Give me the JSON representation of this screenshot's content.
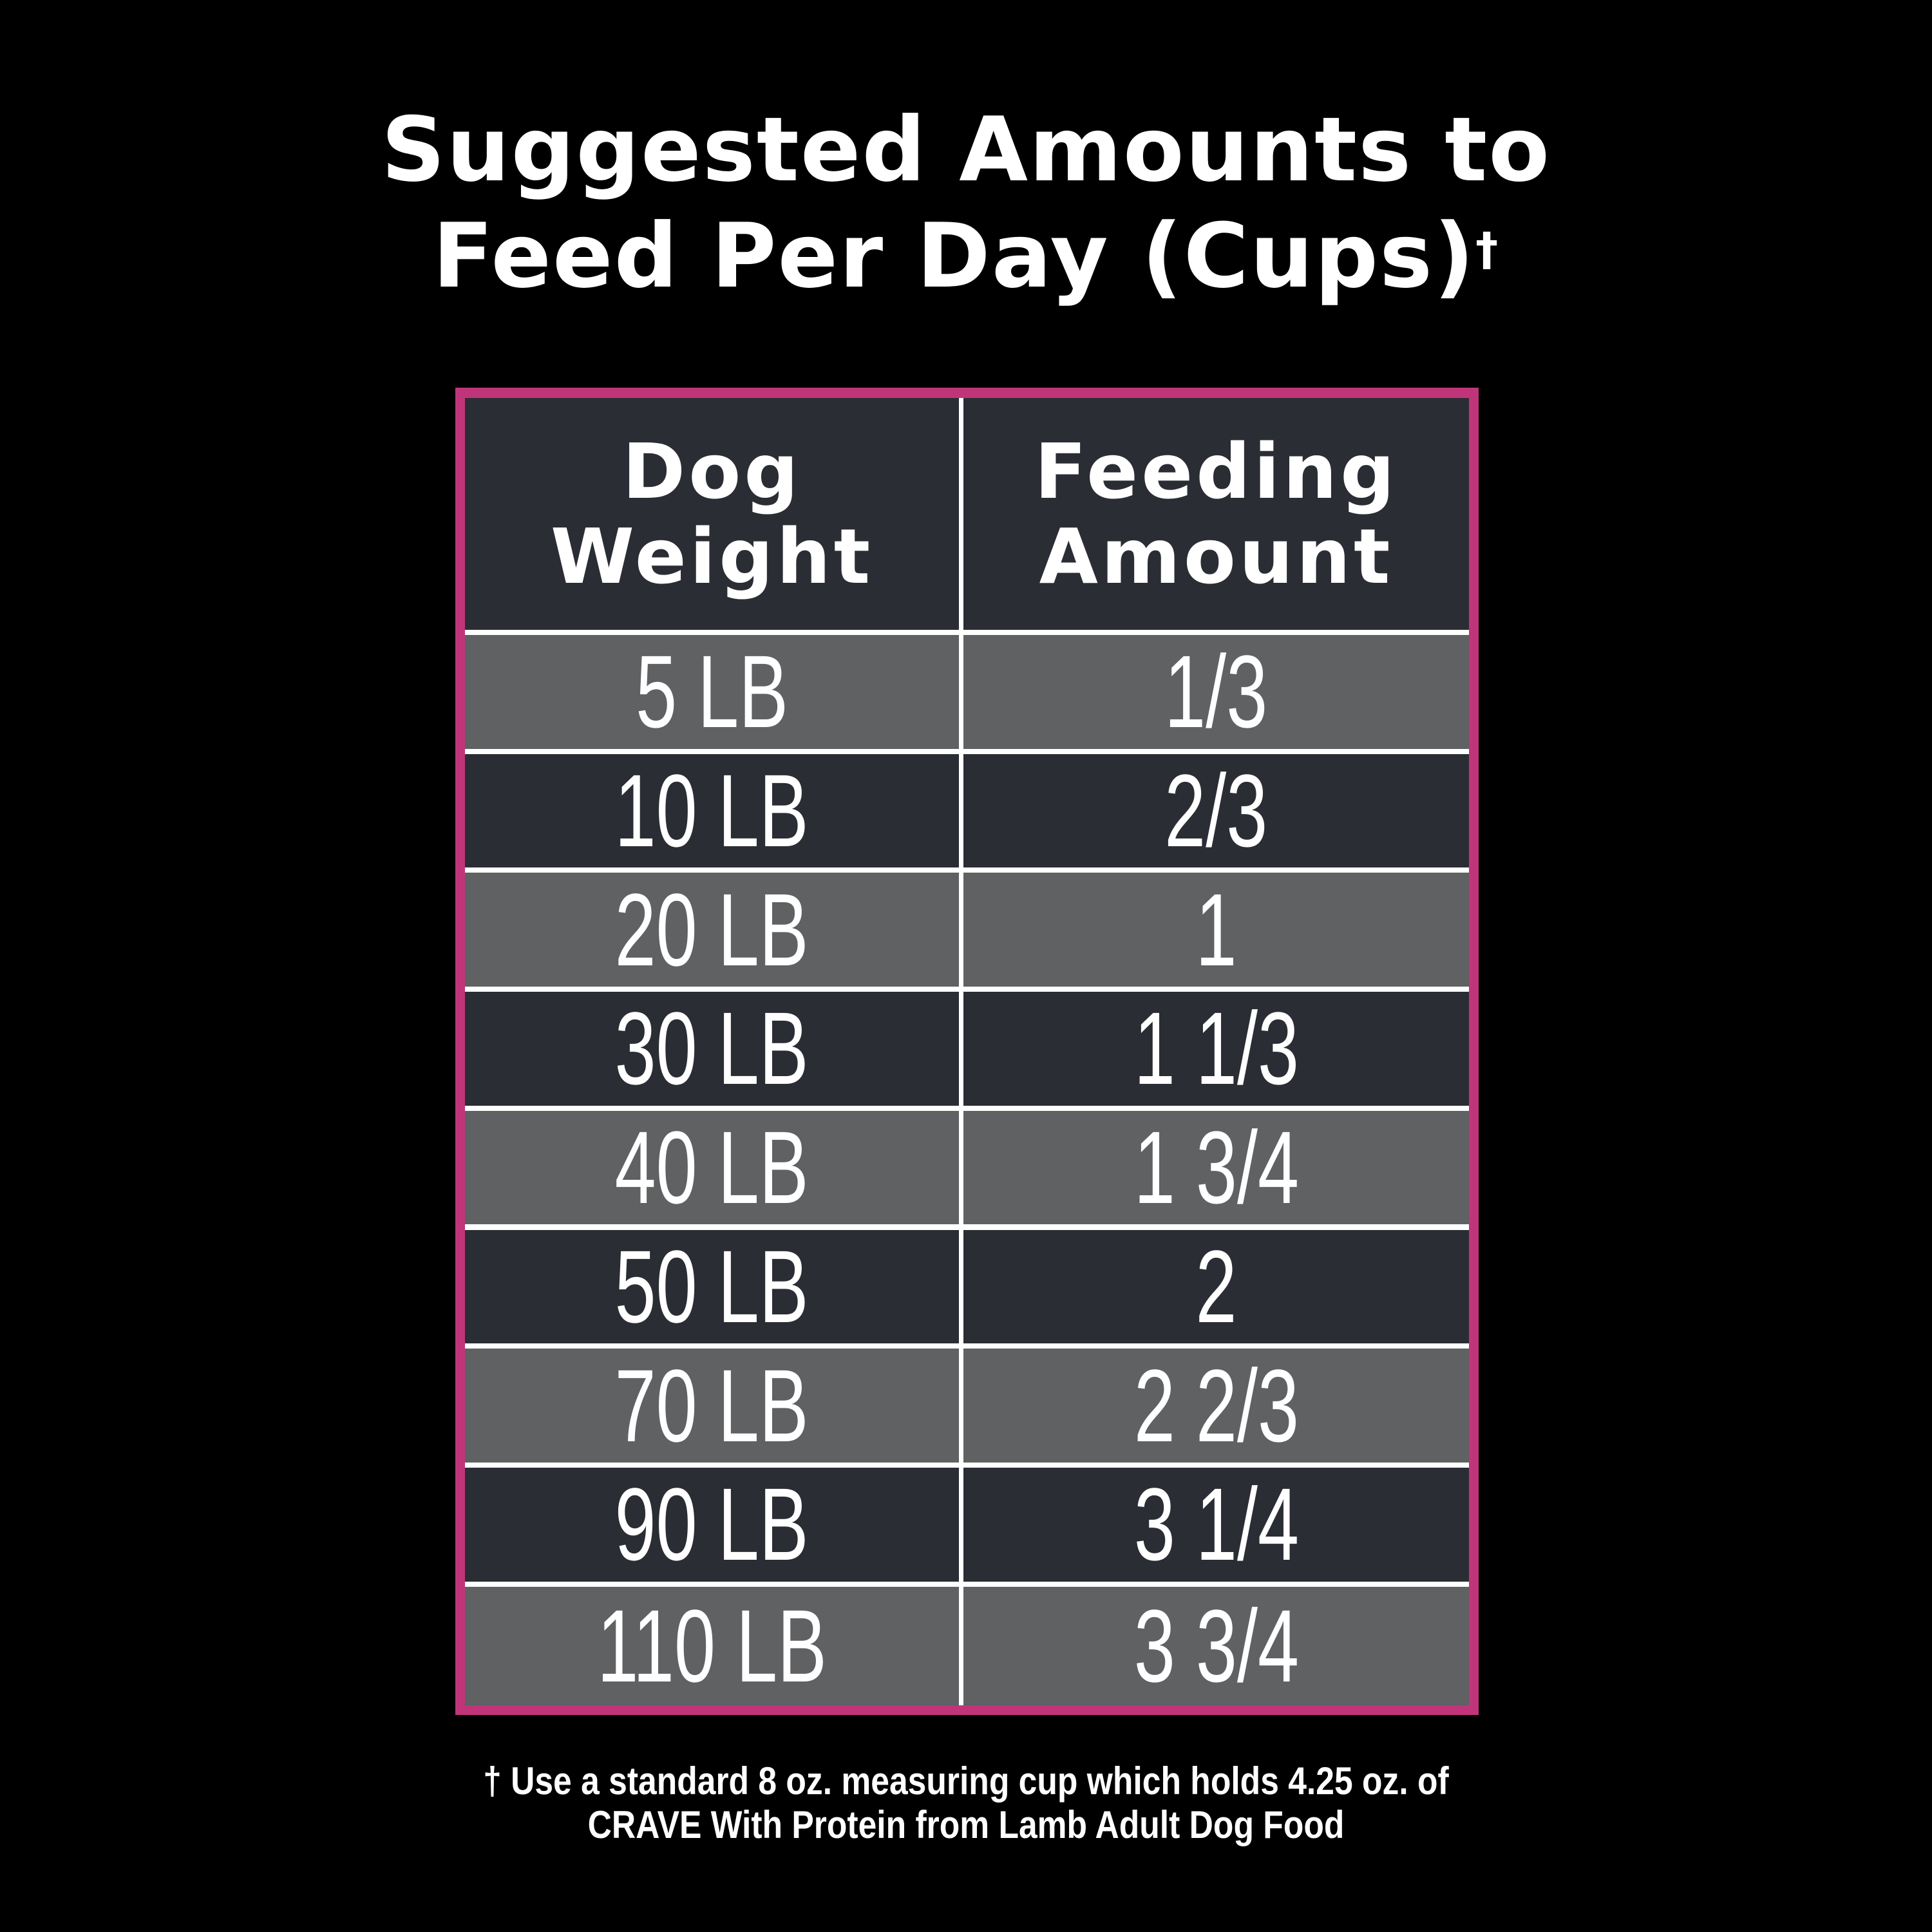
{
  "title": {
    "line1": "Suggested Amounts to",
    "line2": "Feed Per Day (Cups)",
    "dagger": "†"
  },
  "table": {
    "headers": [
      "Dog\nWeight",
      "Feeding\nAmount"
    ],
    "header_lines": [
      [
        "Dog",
        "Weight"
      ],
      [
        "Feeding",
        "Amount"
      ]
    ],
    "rows": [
      [
        "5 LB",
        "1/3"
      ],
      [
        "10 LB",
        "2/3"
      ],
      [
        "20 LB",
        "1"
      ],
      [
        "30 LB",
        "1 1/3"
      ],
      [
        "40 LB",
        "1 3/4"
      ],
      [
        "50 LB",
        "2"
      ],
      [
        "70 LB",
        "2 2/3"
      ],
      [
        "90 LB",
        "3 1/4"
      ],
      [
        "110 LB",
        "3 3/4"
      ]
    ]
  },
  "footnote": {
    "line1": "† Use a standard 8 oz. measuring cup which holds 4.25 oz. of",
    "line2": "CRAVE With Protein from Lamb Adult Dog Food"
  },
  "colors": {
    "border": "#c0357a",
    "dark_row": "#2b2d34",
    "light_row": "#5f6163",
    "background": "#000000"
  }
}
